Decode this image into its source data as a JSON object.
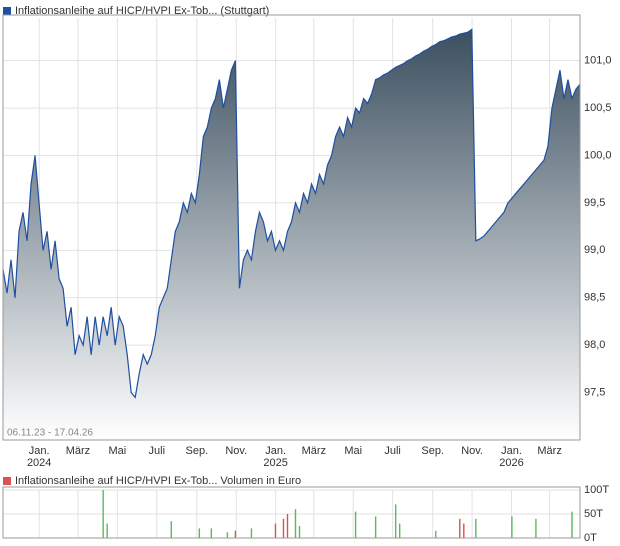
{
  "chart_data": [
    {
      "type": "area",
      "series": [
        {
          "name": "Inflationsanleihe auf HICP/HVPI Ex-Tob... (Stuttgart)",
          "color": "#1f4fa0",
          "values": [
            98.8,
            98.55,
            98.9,
            98.5,
            99.2,
            99.4,
            99.1,
            99.7,
            100.0,
            99.5,
            99.0,
            99.2,
            98.8,
            99.1,
            98.7,
            98.6,
            98.2,
            98.4,
            97.9,
            98.1,
            98.0,
            98.3,
            97.9,
            98.3,
            98.0,
            98.3,
            98.1,
            98.4,
            98.0,
            98.3,
            98.2,
            97.9,
            97.5,
            97.45,
            97.7,
            97.9,
            97.8,
            97.9,
            98.1,
            98.4,
            98.5,
            98.6,
            98.9,
            99.2,
            99.3,
            99.5,
            99.4,
            99.6,
            99.5,
            99.8,
            100.2,
            100.3,
            100.5,
            100.6,
            100.8,
            100.5,
            100.7,
            100.9,
            101.0,
            98.6,
            98.9,
            99.0,
            98.9,
            99.2,
            99.4,
            99.3,
            99.1,
            99.2,
            99.0,
            99.1,
            99.0,
            99.2,
            99.3,
            99.5,
            99.4,
            99.6,
            99.5,
            99.7,
            99.6,
            99.8,
            99.7,
            99.9,
            100.0,
            100.2,
            100.3,
            100.2,
            100.4,
            100.3,
            100.5,
            100.45,
            100.6,
            100.55,
            100.65,
            100.8,
            100.82,
            100.85,
            100.87,
            100.9,
            100.93,
            100.95,
            100.97,
            101.0,
            101.02,
            101.05,
            101.07,
            101.1,
            101.12,
            101.15,
            101.17,
            101.2,
            101.21,
            101.23,
            101.25,
            101.26,
            101.28,
            101.29,
            101.3,
            101.33,
            99.1,
            99.12,
            99.15,
            99.2,
            99.25,
            99.3,
            99.35,
            99.4,
            99.5,
            99.55,
            99.6,
            99.65,
            99.7,
            99.75,
            99.8,
            99.85,
            99.9,
            99.95,
            100.1,
            100.5,
            100.7,
            100.9,
            100.6,
            100.8,
            100.6,
            100.7,
            100.75
          ]
        }
      ],
      "date_range": "06.11.23 - 17.04.26",
      "xlim": [
        "2023-11-06",
        "2026-04-17"
      ],
      "xticks": [
        {
          "value": "2024-01-01",
          "label": "Jan.",
          "year": "2024"
        },
        {
          "value": "2024-03-01",
          "label": "März"
        },
        {
          "value": "2024-05-01",
          "label": "Mai"
        },
        {
          "value": "2024-07-01",
          "label": "Juli"
        },
        {
          "value": "2024-09-01",
          "label": "Sep."
        },
        {
          "value": "2024-11-01",
          "label": "Nov."
        },
        {
          "value": "2025-01-01",
          "label": "Jan.",
          "year": "2025"
        },
        {
          "value": "2025-03-01",
          "label": "März"
        },
        {
          "value": "2025-05-01",
          "label": "Mai"
        },
        {
          "value": "2025-07-01",
          "label": "Juli"
        },
        {
          "value": "2025-09-01",
          "label": "Sep."
        },
        {
          "value": "2025-11-01",
          "label": "Nov."
        },
        {
          "value": "2026-01-01",
          "label": "Jan.",
          "year": "2026"
        },
        {
          "value": "2026-03-01",
          "label": "März"
        }
      ],
      "ylim": [
        97.0,
        101.45
      ],
      "yticks": [
        {
          "value": 97.5,
          "label": "97,5"
        },
        {
          "value": 98.0,
          "label": "98,0"
        },
        {
          "value": 98.5,
          "label": "98,5"
        },
        {
          "value": 99.0,
          "label": "99,0"
        },
        {
          "value": 99.5,
          "label": "99,5"
        },
        {
          "value": 100.0,
          "label": "100,0"
        },
        {
          "value": 100.5,
          "label": "100,5"
        },
        {
          "value": 101.0,
          "label": "101,0"
        }
      ],
      "grid": true
    },
    {
      "type": "bar",
      "title": "Inflationsanleihe auf HICP/HVPI Ex-Tob... Volumen in Euro",
      "title_marker_color": "#d9534f",
      "xlim": [
        "2023-11-06",
        "2026-04-17"
      ],
      "ylim": [
        0,
        100
      ],
      "yticks": [
        {
          "value": 0,
          "label": "0T"
        },
        {
          "value": 50,
          "label": "50T"
        },
        {
          "value": 100,
          "label": "100T"
        }
      ],
      "series": [
        {
          "color": "#5cb85c",
          "values": [
            0,
            0,
            0,
            0,
            0,
            0,
            0,
            0,
            0,
            0,
            0,
            0,
            0,
            0,
            0,
            0,
            0,
            0,
            0,
            0,
            0,
            0,
            0,
            0,
            0,
            100,
            30,
            0,
            0,
            0,
            0,
            0,
            0,
            0,
            0,
            0,
            0,
            0,
            0,
            0,
            0,
            0,
            35,
            0,
            0,
            0,
            0,
            0,
            0,
            20,
            0,
            0,
            20,
            0,
            0,
            0,
            12,
            0,
            0,
            0,
            0,
            0,
            20,
            0,
            0,
            0,
            0,
            0,
            0,
            0,
            0,
            0,
            0,
            60,
            25,
            0,
            0,
            0,
            0,
            0,
            0,
            0,
            0,
            0,
            0,
            0,
            0,
            0,
            55,
            0,
            0,
            0,
            0,
            45,
            0,
            0,
            0,
            0,
            70,
            30,
            0,
            0,
            0,
            0,
            0,
            0,
            0,
            0,
            15,
            0,
            0,
            0,
            0,
            0,
            0,
            0,
            0,
            0,
            40,
            0,
            0,
            0,
            0,
            0,
            0,
            0,
            0,
            45,
            0,
            0,
            0,
            0,
            0,
            40,
            0,
            0,
            0,
            0,
            0,
            0,
            0,
            0,
            55,
            0,
            0
          ]
        },
        {
          "color": "#d9534f",
          "values": [
            0,
            0,
            0,
            0,
            0,
            0,
            0,
            0,
            0,
            0,
            0,
            0,
            0,
            0,
            0,
            0,
            0,
            0,
            0,
            0,
            0,
            0,
            0,
            0,
            0,
            0,
            0,
            0,
            0,
            0,
            0,
            0,
            0,
            0,
            0,
            0,
            0,
            0,
            0,
            0,
            0,
            0,
            0,
            0,
            0,
            0,
            0,
            0,
            0,
            0,
            0,
            0,
            0,
            0,
            0,
            0,
            0,
            0,
            15,
            0,
            0,
            0,
            0,
            0,
            0,
            0,
            0,
            0,
            30,
            0,
            40,
            50,
            0,
            0,
            0,
            0,
            0,
            0,
            0,
            0,
            0,
            0,
            0,
            0,
            0,
            0,
            0,
            0,
            0,
            0,
            0,
            0,
            0,
            0,
            0,
            0,
            0,
            0,
            0,
            0,
            0,
            0,
            0,
            0,
            0,
            0,
            0,
            0,
            0,
            0,
            0,
            0,
            0,
            0,
            40,
            30,
            0,
            0,
            0,
            0,
            0,
            0,
            0,
            0,
            0,
            0,
            0,
            0,
            0,
            0,
            0,
            0,
            0,
            0,
            0,
            0,
            0,
            0,
            0,
            0,
            0,
            0,
            0,
            0,
            0
          ]
        }
      ]
    }
  ]
}
